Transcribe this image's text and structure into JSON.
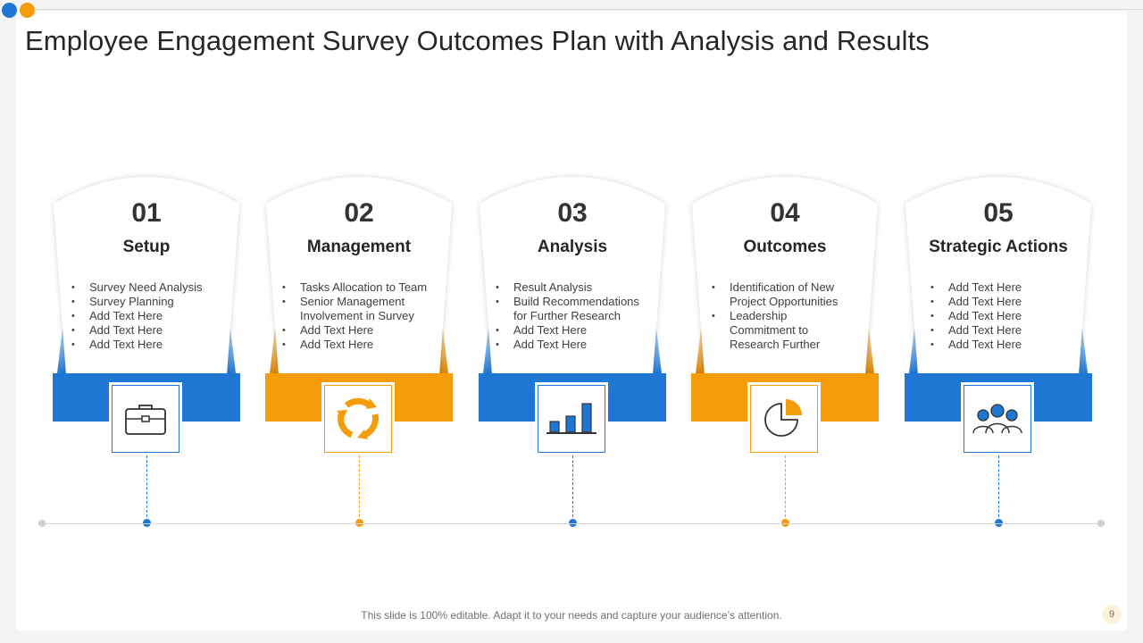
{
  "title": "Employee Engagement Survey Outcomes Plan with Analysis and Results",
  "colors": {
    "blue": "#1f77d4",
    "orange": "#f59c0a",
    "blue_dark": "#0e4e96",
    "orange_dark": "#b86f00"
  },
  "steps": [
    {
      "number": "01",
      "heading": "Setup",
      "color": "blue",
      "icon": "briefcase-icon",
      "bullets": [
        "Survey  Need Analysis",
        "Survey  Planning",
        "Add Text Here",
        "Add Text Here",
        "Add Text Here"
      ]
    },
    {
      "number": "02",
      "heading": "Management",
      "color": "orange",
      "icon": "cycle-arrows-icon",
      "bullets": [
        "Tasks Allocation to Team",
        "Senior Management Involvement  in Survey",
        "Add Text Here",
        "Add Text Here"
      ]
    },
    {
      "number": "03",
      "heading": "Analysis",
      "color": "blue",
      "icon": "bar-chart-icon",
      "bullets": [
        "Result Analysis",
        "Build Recommendations for Further Research",
        "Add Text Here",
        "Add Text Here"
      ]
    },
    {
      "number": "04",
      "heading": "Outcomes",
      "color": "orange",
      "icon": "pie-chart-icon",
      "bullets": [
        "Identification  of New Project Opportunities",
        "Leadership Commitment to Research Further"
      ]
    },
    {
      "number": "05",
      "heading": "Strategic Actions",
      "color": "blue",
      "icon": "team-icon",
      "bullets": [
        "Add Text Here",
        "Add Text Here",
        "Add Text Here",
        "Add Text Here",
        "Add Text Here"
      ]
    }
  ],
  "footer": "This slide is 100% editable. Adapt it to your needs and capture your audience’s attention.",
  "page_number": "9"
}
